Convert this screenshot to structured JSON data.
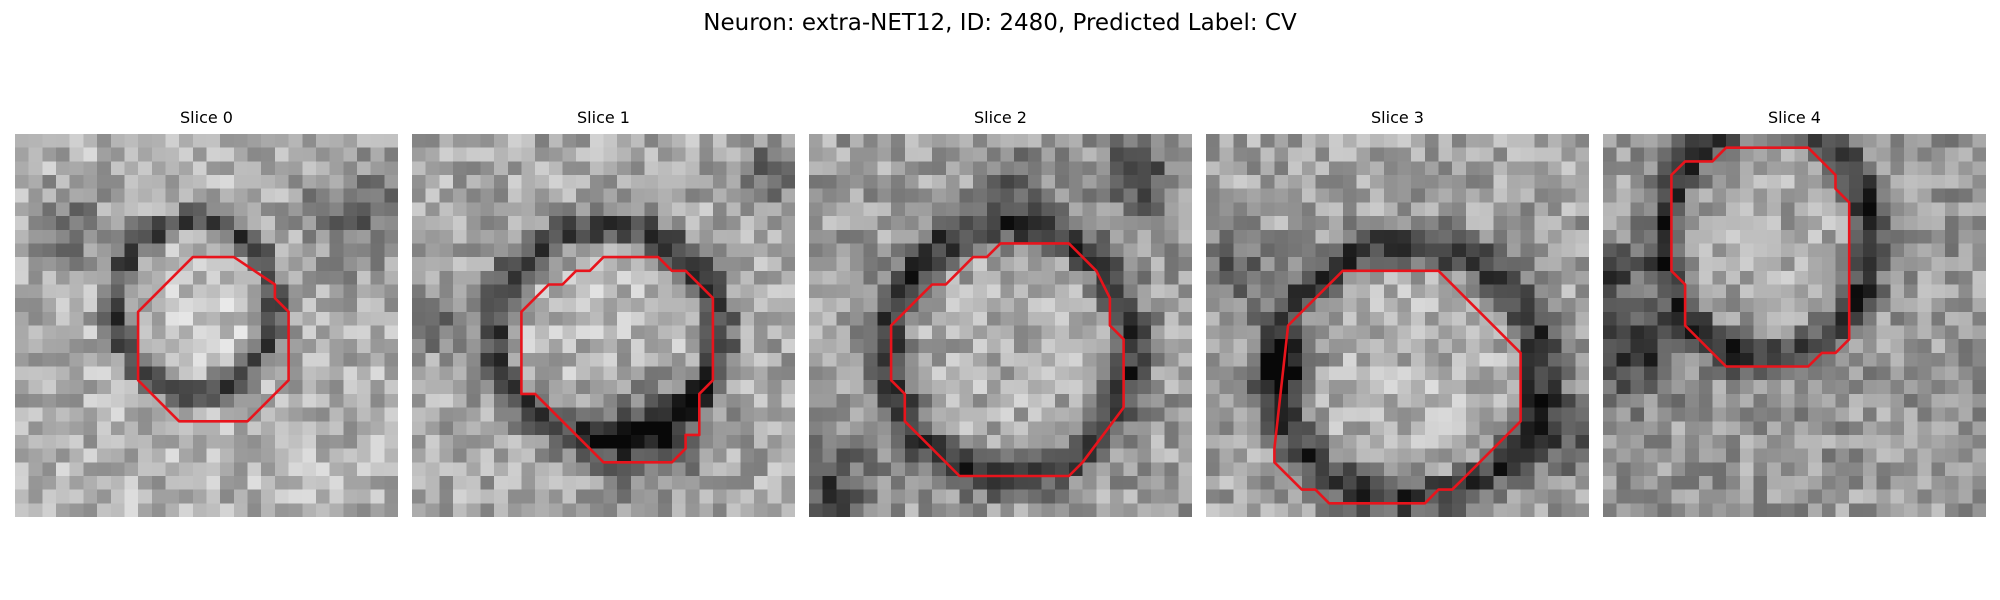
{
  "figure": {
    "title": "Neuron: extra-NET12, ID: 2480, Predicted Label: CV"
  },
  "panels": [
    {
      "title": "Slice 0"
    },
    {
      "title": "Slice 1"
    },
    {
      "title": "Slice 2"
    },
    {
      "title": "Slice 3"
    },
    {
      "title": "Slice 4"
    }
  ],
  "colors": {
    "contour": "#e8141c",
    "background": "#ffffff"
  }
}
